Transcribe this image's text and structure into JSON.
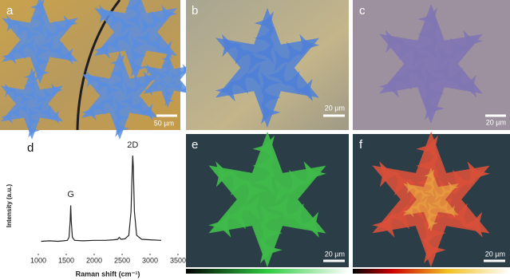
{
  "panels": {
    "a": {
      "label": "a",
      "scale_bar": "50 µm"
    },
    "b": {
      "label": "b",
      "scale_bar": "20 µm"
    },
    "c": {
      "label": "c",
      "scale_bar": "20 µm"
    },
    "d": {
      "label": "d"
    },
    "e": {
      "label": "e",
      "scale_bar": "20 µm"
    },
    "f": {
      "label": "f",
      "scale_bar": "20 µm"
    }
  },
  "chart_data": {
    "type": "line",
    "x_label": "Raman shift (cm⁻¹)",
    "y_label": "Intensity (a.u.)",
    "annotations": [
      "G",
      "2D"
    ],
    "x": [
      1050,
      1200,
      1350,
      1450,
      1520,
      1550,
      1570,
      1580,
      1590,
      1610,
      1650,
      1800,
      2000,
      2200,
      2350,
      2420,
      2450,
      2480,
      2550,
      2620,
      2660,
      2680,
      2690,
      2700,
      2720,
      2760,
      2850,
      3000,
      3200
    ],
    "values": [
      10,
      10.5,
      10,
      10.5,
      11,
      14,
      30,
      46,
      30,
      14,
      11,
      10.5,
      11,
      11,
      11.5,
      12,
      14,
      12,
      12.5,
      16,
      40,
      80,
      96,
      85,
      40,
      16,
      12,
      11.5,
      11
    ],
    "color": "#222222",
    "xlim": [
      1000,
      3500
    ],
    "xticks": [
      1000,
      1500,
      2000,
      2500,
      3000,
      3500
    ],
    "ylim": [
      0,
      100
    ]
  }
}
